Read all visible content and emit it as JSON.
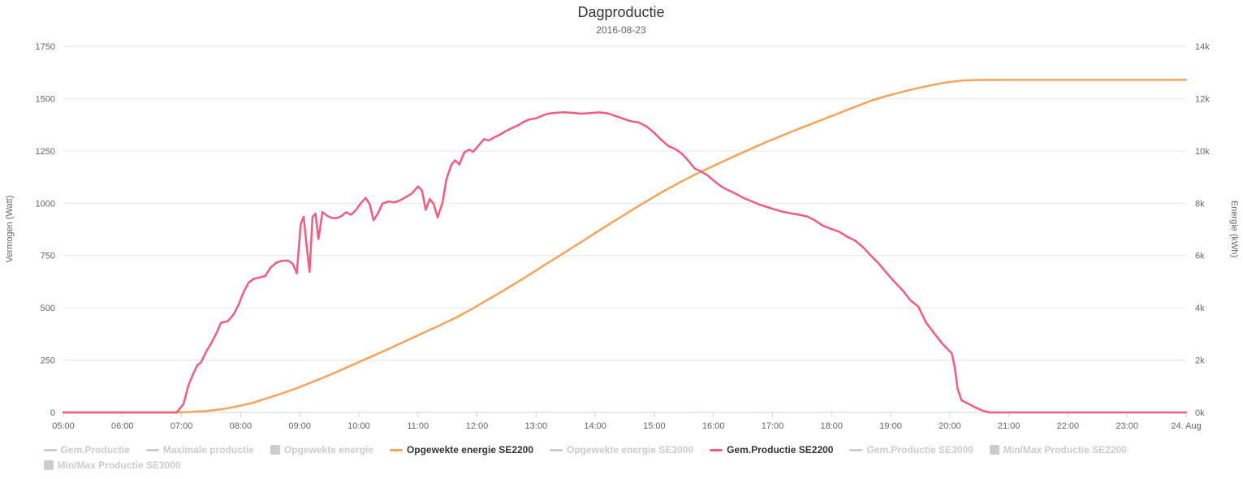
{
  "chart_data": {
    "type": "line",
    "title": "Dagproductie",
    "subtitle": "2016-08-23",
    "background_color": "#ffffff",
    "grid_color": "#e6e6e6",
    "axis_line_color": "#ccd6eb",
    "label_color": "#666666",
    "legend_position": "bottom",
    "x_axis": {
      "type": "time",
      "start": "05:00",
      "end": "24:00",
      "tick_labels": [
        "05:00",
        "06:00",
        "07:00",
        "08:00",
        "09:00",
        "10:00",
        "11:00",
        "12:00",
        "13:00",
        "14:00",
        "15:00",
        "16:00",
        "17:00",
        "18:00",
        "19:00",
        "20:00",
        "21:00",
        "22:00",
        "23:00",
        "24. Aug"
      ]
    },
    "y_axis_left": {
      "title": "Vermogen (Watt)",
      "min": 0,
      "max": 1750,
      "ticks": [
        "0",
        "250",
        "500",
        "750",
        "1000",
        "1250",
        "1500",
        "1750"
      ],
      "tick_values": [
        0,
        250,
        500,
        750,
        1000,
        1250,
        1500,
        1750
      ]
    },
    "y_axis_right": {
      "title": "Energie (kWh)",
      "min": 0,
      "max": 14000,
      "ticks": [
        "0k",
        "2k",
        "4k",
        "6k",
        "8k",
        "10k",
        "12k",
        "14k"
      ],
      "tick_values": [
        0,
        2000,
        4000,
        6000,
        8000,
        10000,
        12000,
        14000
      ]
    },
    "series": [
      {
        "name": "Opgewekte energie SE2200",
        "axis": "right",
        "unit": "Wh",
        "color": "#f7a35c",
        "points": [
          [
            "05:00",
            0
          ],
          [
            "06:55",
            0
          ],
          [
            "07:10",
            20
          ],
          [
            "07:25",
            55
          ],
          [
            "07:40",
            115
          ],
          [
            "07:55",
            220
          ],
          [
            "08:10",
            345
          ],
          [
            "08:25",
            520
          ],
          [
            "08:40",
            700
          ],
          [
            "08:55",
            900
          ],
          [
            "09:10",
            1120
          ],
          [
            "09:25",
            1350
          ],
          [
            "09:40",
            1590
          ],
          [
            "09:55",
            1840
          ],
          [
            "10:10",
            2090
          ],
          [
            "10:25",
            2340
          ],
          [
            "10:40",
            2600
          ],
          [
            "10:55",
            2860
          ],
          [
            "11:10",
            3120
          ],
          [
            "11:25",
            3380
          ],
          [
            "11:40",
            3650
          ],
          [
            "11:55",
            3960
          ],
          [
            "12:10",
            4290
          ],
          [
            "12:25",
            4620
          ],
          [
            "12:40",
            4960
          ],
          [
            "12:55",
            5310
          ],
          [
            "13:10",
            5670
          ],
          [
            "13:25",
            6020
          ],
          [
            "13:40",
            6380
          ],
          [
            "13:55",
            6740
          ],
          [
            "14:10",
            7100
          ],
          [
            "14:25",
            7450
          ],
          [
            "14:40",
            7800
          ],
          [
            "14:55",
            8140
          ],
          [
            "15:10",
            8470
          ],
          [
            "15:25",
            8780
          ],
          [
            "15:40",
            9070
          ],
          [
            "15:55",
            9340
          ],
          [
            "16:10",
            9600
          ],
          [
            "16:25",
            9860
          ],
          [
            "16:40",
            10110
          ],
          [
            "16:55",
            10360
          ],
          [
            "17:10",
            10590
          ],
          [
            "17:25",
            10820
          ],
          [
            "17:40",
            11040
          ],
          [
            "17:55",
            11260
          ],
          [
            "18:10",
            11480
          ],
          [
            "18:25",
            11700
          ],
          [
            "18:40",
            11920
          ],
          [
            "18:55",
            12090
          ],
          [
            "19:10",
            12240
          ],
          [
            "19:25",
            12380
          ],
          [
            "19:40",
            12500
          ],
          [
            "19:55",
            12610
          ],
          [
            "20:05",
            12660
          ],
          [
            "20:15",
            12695
          ],
          [
            "20:30",
            12712
          ],
          [
            "21:00",
            12715
          ],
          [
            "22:00",
            12715
          ],
          [
            "23:00",
            12715
          ],
          [
            "24:00",
            12715
          ]
        ]
      },
      {
        "name": "Gem.Productie SE2200",
        "axis": "left",
        "unit": "W",
        "color": "#f15c80",
        "points": [
          [
            "05:00",
            0
          ],
          [
            "06:55",
            0
          ],
          [
            "07:02",
            40
          ],
          [
            "07:07",
            130
          ],
          [
            "07:12",
            185
          ],
          [
            "07:16",
            225
          ],
          [
            "07:20",
            240
          ],
          [
            "07:25",
            290
          ],
          [
            "07:30",
            330
          ],
          [
            "07:36",
            385
          ],
          [
            "07:40",
            428
          ],
          [
            "07:47",
            436
          ],
          [
            "07:53",
            470
          ],
          [
            "07:58",
            515
          ],
          [
            "08:03",
            575
          ],
          [
            "08:08",
            620
          ],
          [
            "08:13",
            638
          ],
          [
            "08:19",
            645
          ],
          [
            "08:25",
            652
          ],
          [
            "08:30",
            690
          ],
          [
            "08:36",
            715
          ],
          [
            "08:42",
            725
          ],
          [
            "08:48",
            726
          ],
          [
            "08:53",
            710
          ],
          [
            "08:57",
            665
          ],
          [
            "09:01",
            900
          ],
          [
            "09:04",
            935
          ],
          [
            "09:07",
            795
          ],
          [
            "09:10",
            672
          ],
          [
            "09:13",
            935
          ],
          [
            "09:16",
            950
          ],
          [
            "09:19",
            828
          ],
          [
            "09:23",
            958
          ],
          [
            "09:27",
            942
          ],
          [
            "09:32",
            930
          ],
          [
            "09:37",
            928
          ],
          [
            "09:42",
            937
          ],
          [
            "09:47",
            957
          ],
          [
            "09:52",
            945
          ],
          [
            "09:57",
            967
          ],
          [
            "10:02",
            1000
          ],
          [
            "10:07",
            1025
          ],
          [
            "10:11",
            995
          ],
          [
            "10:15",
            918
          ],
          [
            "10:19",
            948
          ],
          [
            "10:24",
            998
          ],
          [
            "10:30",
            1008
          ],
          [
            "10:36",
            1004
          ],
          [
            "10:42",
            1014
          ],
          [
            "10:48",
            1030
          ],
          [
            "10:54",
            1047
          ],
          [
            "11:00",
            1080
          ],
          [
            "11:04",
            1062
          ],
          [
            "11:08",
            968
          ],
          [
            "11:12",
            1020
          ],
          [
            "11:16",
            996
          ],
          [
            "11:20",
            932
          ],
          [
            "11:25",
            1005
          ],
          [
            "11:29",
            1115
          ],
          [
            "11:34",
            1185
          ],
          [
            "11:38",
            1205
          ],
          [
            "11:42",
            1185
          ],
          [
            "11:47",
            1243
          ],
          [
            "11:52",
            1256
          ],
          [
            "11:56",
            1245
          ],
          [
            "12:02",
            1278
          ],
          [
            "12:07",
            1306
          ],
          [
            "12:12",
            1300
          ],
          [
            "12:17",
            1314
          ],
          [
            "12:23",
            1327
          ],
          [
            "12:29",
            1344
          ],
          [
            "12:35",
            1358
          ],
          [
            "12:41",
            1371
          ],
          [
            "12:47",
            1388
          ],
          [
            "12:53",
            1400
          ],
          [
            "13:00",
            1406
          ],
          [
            "13:06",
            1418
          ],
          [
            "13:12",
            1428
          ],
          [
            "13:19",
            1432
          ],
          [
            "13:28",
            1435
          ],
          [
            "13:37",
            1432
          ],
          [
            "13:46",
            1428
          ],
          [
            "13:55",
            1431
          ],
          [
            "14:04",
            1434
          ],
          [
            "14:13",
            1429
          ],
          [
            "14:21",
            1416
          ],
          [
            "14:29",
            1403
          ],
          [
            "14:36",
            1392
          ],
          [
            "14:44",
            1386
          ],
          [
            "14:52",
            1367
          ],
          [
            "15:00",
            1336
          ],
          [
            "15:07",
            1303
          ],
          [
            "15:14",
            1274
          ],
          [
            "15:21",
            1259
          ],
          [
            "15:28",
            1237
          ],
          [
            "15:35",
            1200
          ],
          [
            "15:41",
            1166
          ],
          [
            "15:47",
            1153
          ],
          [
            "15:54",
            1133
          ],
          [
            "16:01",
            1105
          ],
          [
            "16:08",
            1080
          ],
          [
            "16:15",
            1062
          ],
          [
            "16:23",
            1044
          ],
          [
            "16:31",
            1024
          ],
          [
            "16:39",
            1009
          ],
          [
            "16:47",
            993
          ],
          [
            "16:55",
            981
          ],
          [
            "17:03",
            969
          ],
          [
            "17:11",
            959
          ],
          [
            "17:19",
            951
          ],
          [
            "17:27",
            945
          ],
          [
            "17:35",
            937
          ],
          [
            "17:43",
            918
          ],
          [
            "17:51",
            893
          ],
          [
            "18:00",
            876
          ],
          [
            "18:08",
            863
          ],
          [
            "18:16",
            839
          ],
          [
            "18:24",
            821
          ],
          [
            "18:32",
            789
          ],
          [
            "18:40",
            749
          ],
          [
            "18:48",
            711
          ],
          [
            "18:56",
            666
          ],
          [
            "19:04",
            623
          ],
          [
            "19:12",
            584
          ],
          [
            "19:20",
            536
          ],
          [
            "19:28",
            506
          ],
          [
            "19:36",
            429
          ],
          [
            "19:44",
            379
          ],
          [
            "19:52",
            331
          ],
          [
            "19:58",
            301
          ],
          [
            "20:02",
            283
          ],
          [
            "20:05",
            216
          ],
          [
            "20:08",
            112
          ],
          [
            "20:12",
            58
          ],
          [
            "20:18",
            43
          ],
          [
            "20:25",
            26
          ],
          [
            "20:33",
            9
          ],
          [
            "20:40",
            0
          ],
          [
            "22:00",
            0
          ],
          [
            "24:00",
            0
          ]
        ]
      }
    ],
    "legend": [
      {
        "label": "Gem.Productie",
        "symbol": "line",
        "enabled": false,
        "color": "#cccccc"
      },
      {
        "label": "Maximale productie",
        "symbol": "line",
        "enabled": false,
        "color": "#cccccc"
      },
      {
        "label": "Opgewekte energie",
        "symbol": "square",
        "enabled": false,
        "color": "#cccccc"
      },
      {
        "label": "Opgewekte energie SE2200",
        "symbol": "line",
        "enabled": true,
        "color": "#f7a35c"
      },
      {
        "label": "Opgewekte energie SE3000",
        "symbol": "line",
        "enabled": false,
        "color": "#cccccc"
      },
      {
        "label": "Gem.Productie SE2200",
        "symbol": "line",
        "enabled": true,
        "color": "#f15c80"
      },
      {
        "label": "Gem.Productie SE3000",
        "symbol": "line",
        "enabled": false,
        "color": "#cccccc"
      },
      {
        "label": "Min/Max Productie SE2200",
        "symbol": "square",
        "enabled": false,
        "color": "#cccccc"
      },
      {
        "label": "Min/Max Productie SE3000",
        "symbol": "square",
        "enabled": false,
        "color": "#cccccc"
      }
    ]
  }
}
